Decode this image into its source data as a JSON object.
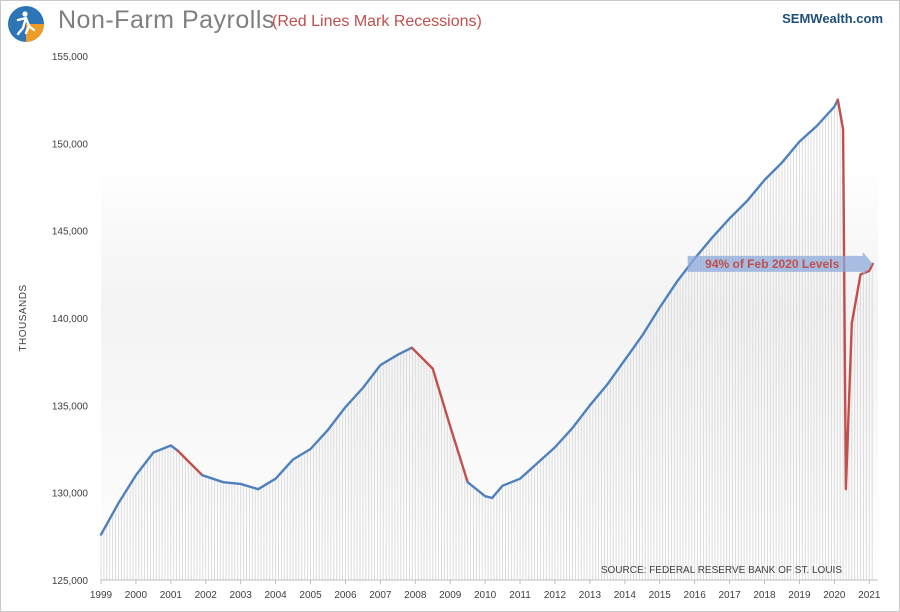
{
  "header": {
    "title": "Non-Farm Payrolls",
    "subtitle": "(Red Lines Mark Recessions)",
    "brand": "SEMWealth.com"
  },
  "colors": {
    "main_line": "#4f81bd",
    "recession_line": "#c0504d",
    "drop_line": "#c0504d",
    "bar_fill": "#d9d9d9",
    "title": "#7f7f7f",
    "subtitle": "#c0504d",
    "brand": "#1f4e79",
    "annotation_arrow": "#8eaadb"
  },
  "icons": {
    "logo": "runner-logo-icon"
  },
  "chart_data": {
    "type": "line",
    "title": "Non-Farm Payrolls",
    "subtitle": "(Red Lines Mark Recessions)",
    "xlabel": "",
    "ylabel": "THOUSANDS",
    "xlim": [
      1999.0,
      2021.25
    ],
    "ylim": [
      125000,
      155000
    ],
    "y_ticks": [
      125000,
      130000,
      135000,
      140000,
      145000,
      150000,
      155000
    ],
    "y_tick_labels": [
      "125,000",
      "130,000",
      "135,000",
      "140,000",
      "145,000",
      "150,000",
      "155,000"
    ],
    "x_ticks": [
      1999,
      2000,
      2001,
      2002,
      2003,
      2004,
      2005,
      2006,
      2007,
      2008,
      2009,
      2010,
      2011,
      2012,
      2013,
      2014,
      2015,
      2016,
      2017,
      2018,
      2019,
      2020,
      2021
    ],
    "x_tick_labels": [
      "1999",
      "2000",
      "2001",
      "2002",
      "2003",
      "2004",
      "2005",
      "2006",
      "2007",
      "2008",
      "2009",
      "2010",
      "2011",
      "2012",
      "2013",
      "2014",
      "2015",
      "2016",
      "2017",
      "2018",
      "2019",
      "2020",
      "2021"
    ],
    "grid": false,
    "series": [
      {
        "values_x": [
          1999.0,
          1999.5,
          2000.0,
          2000.5,
          2001.0,
          2001.2,
          2001.5,
          2001.9,
          2002.5,
          2003.0,
          2003.5,
          2004.0,
          2004.5,
          2005.0,
          2005.5,
          2006.0,
          2006.5,
          2007.0,
          2007.5,
          2007.9,
          2008.5,
          2009.0,
          2009.5,
          2010.0,
          2010.2,
          2010.5,
          2011.0,
          2011.5,
          2012.0,
          2012.5,
          2013.0,
          2013.5,
          2014.0,
          2014.5,
          2015.0,
          2015.5,
          2016.0,
          2016.5,
          2017.0,
          2017.5,
          2018.0,
          2018.5,
          2019.0,
          2019.5,
          2020.0,
          2020.1,
          2020.25,
          2020.33,
          2020.5,
          2020.75,
          2021.0,
          2021.1
        ],
        "values": [
          127600,
          129400,
          131000,
          132300,
          132700,
          132400,
          131800,
          131000,
          130600,
          130500,
          130200,
          130800,
          131900,
          132500,
          133600,
          134900,
          136000,
          137300,
          137900,
          138300,
          137100,
          133800,
          130600,
          129800,
          129700,
          130400,
          130800,
          131700,
          132600,
          133700,
          135000,
          136200,
          137600,
          139000,
          140600,
          142100,
          143400,
          144600,
          145700,
          146700,
          147900,
          148900,
          150100,
          151000,
          152100,
          152500,
          150800,
          130200,
          139700,
          142500,
          142700,
          143100
        ]
      }
    ],
    "recession_periods": [
      [
        2001.2,
        2001.9
      ],
      [
        2007.9,
        2009.5
      ],
      [
        2020.1,
        2021.1
      ]
    ],
    "annotations": [
      {
        "text": "94% of Feb 2020 Levels",
        "x_start": 2015.8,
        "x_end": 2021.1,
        "y": 143100
      },
      {
        "text": "SOURCE: FEDERAL RESERVE BANK OF ST. LOUIS",
        "position": "bottom-right"
      }
    ]
  }
}
